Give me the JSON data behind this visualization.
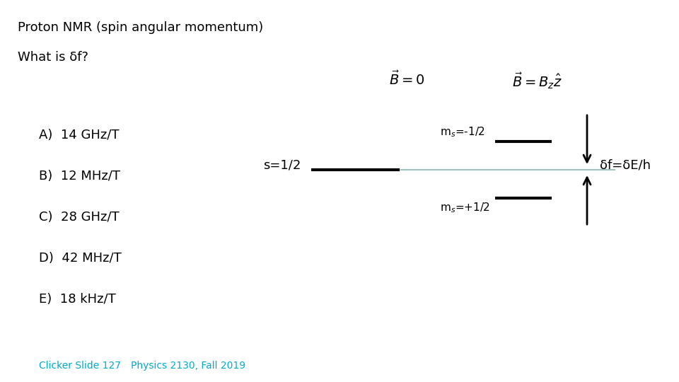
{
  "title": "Proton NMR (spin angular momentum)",
  "question": "What is δf?",
  "spin_label": "s=1/2",
  "b_zero_label": "$\\vec{B} = 0$",
  "b_field_label": "$\\vec{B} = B_z\\hat{z}$",
  "ms_minus_label": "m$_s$=-1/2",
  "ms_plus_label": "m$_s$=+1/2",
  "delta_f_label": "δf=δE/h",
  "choices": [
    "A)  14 GHz/T",
    "B)  12 MHz/T",
    "C)  28 GHz/T",
    "D)  42 MHz/T",
    "E)  18 kHz/T"
  ],
  "footer_left": "Clicker Slide 127",
  "footer_right": "Physics 2130, Fall 2019",
  "footer_color": "#00AACC",
  "bg_color": "#FFFFFF",
  "text_color": "#000000",
  "line_color": "#000000",
  "thin_line_color": "#88BBBB"
}
